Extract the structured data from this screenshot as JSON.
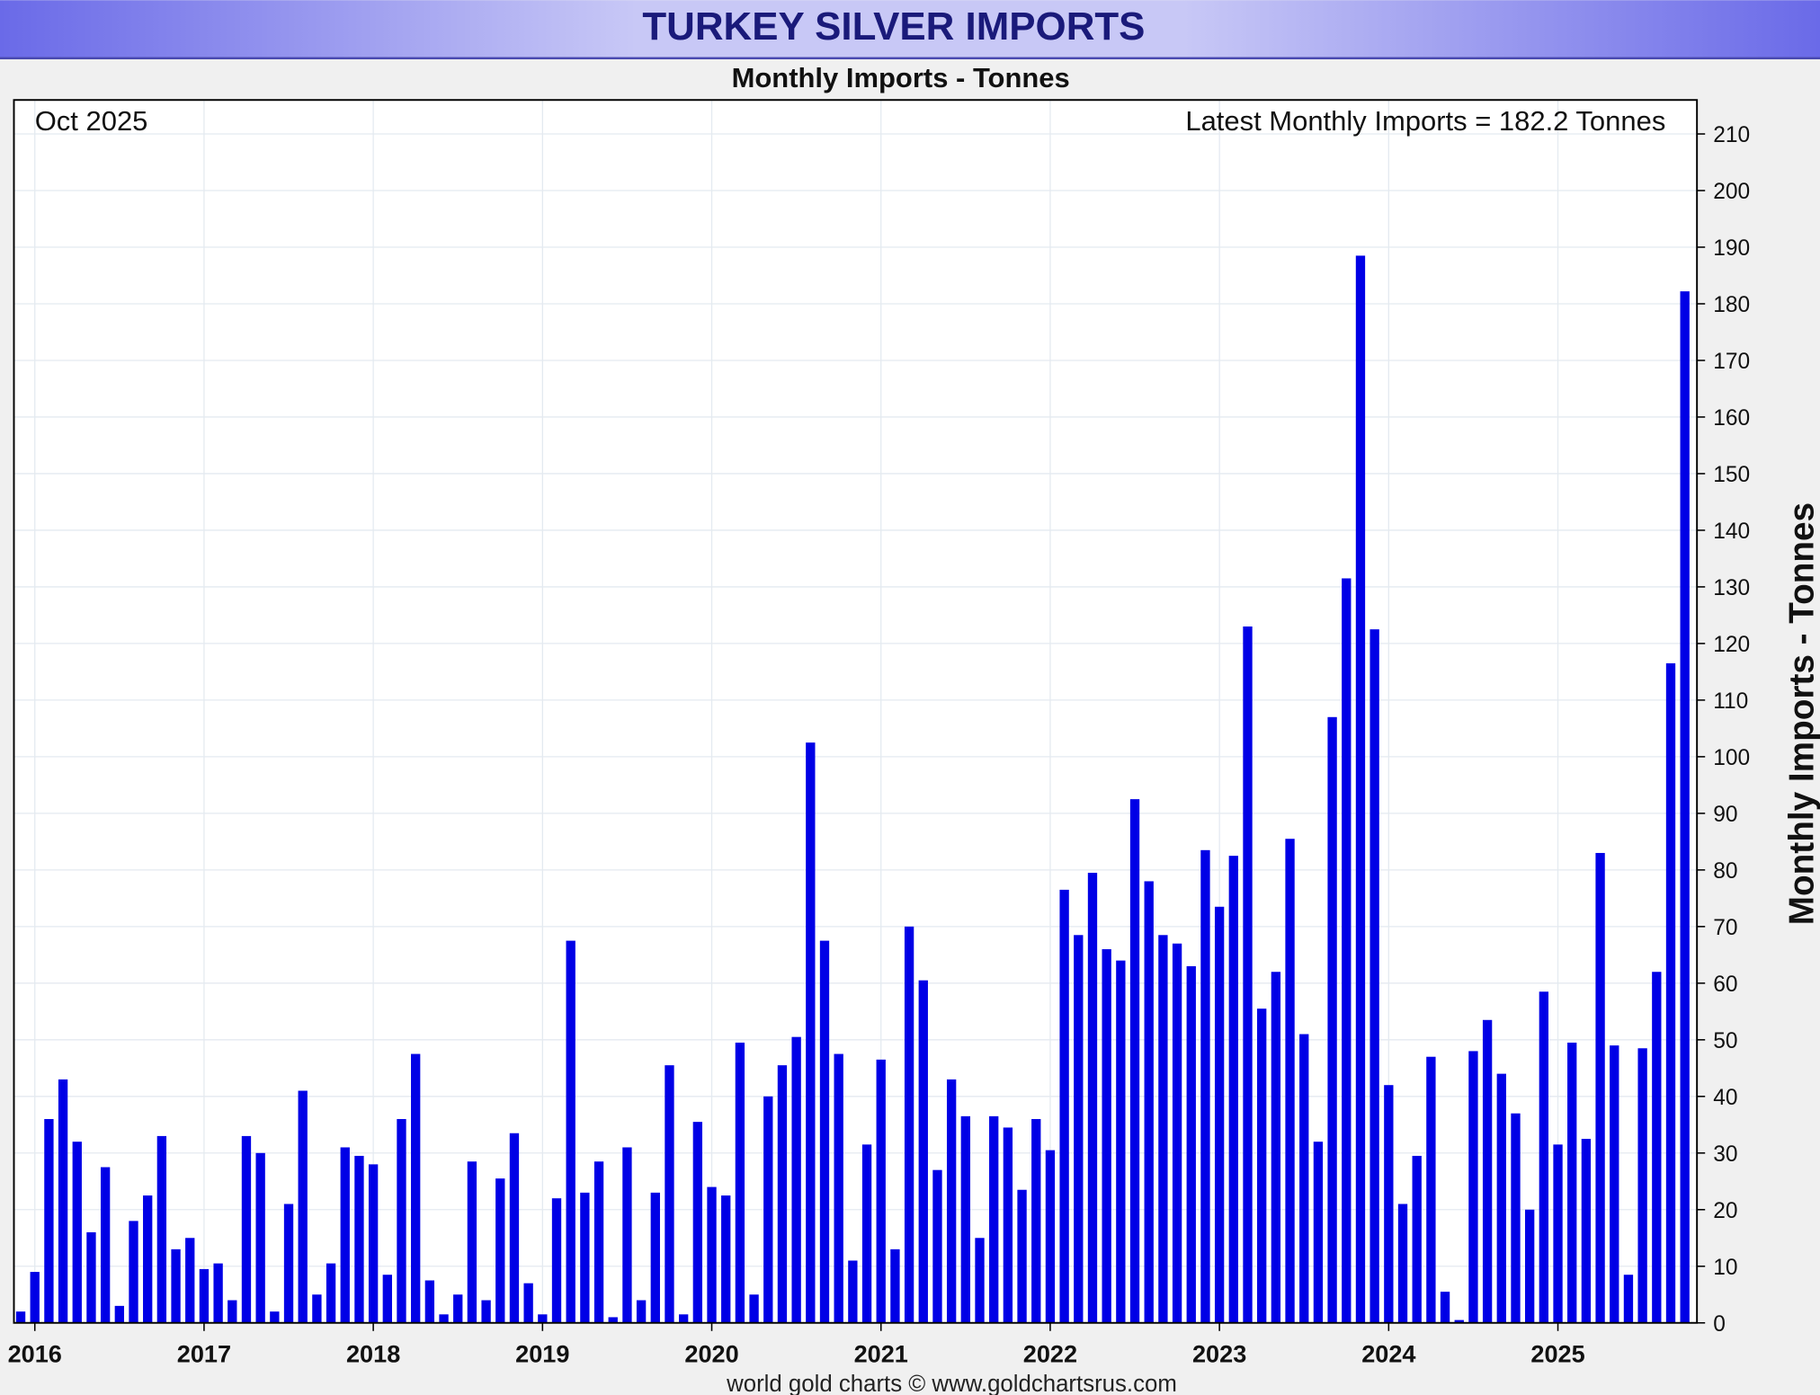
{
  "chart_data": {
    "type": "bar",
    "title": "TURKEY SILVER IMPORTS",
    "subtitle": "Monthly Imports - Tonnes",
    "y_label": "Monthly Imports - Tonnes",
    "annotation_left": "Oct 2025",
    "annotation_right": "Latest Monthly Imports = 182.2 Tonnes",
    "footer": "world gold charts © www.goldchartsrus.com",
    "color": "#0000e6",
    "grid": true,
    "y_axis_side": "right",
    "ylim": [
      0,
      216
    ],
    "yticks": [
      0,
      10,
      20,
      30,
      40,
      50,
      60,
      70,
      80,
      90,
      100,
      110,
      120,
      130,
      140,
      150,
      160,
      170,
      180,
      190,
      200,
      210
    ],
    "categories": [
      null,
      "2016",
      null,
      null,
      null,
      null,
      null,
      null,
      null,
      null,
      null,
      null,
      null,
      "2017",
      null,
      null,
      null,
      null,
      null,
      null,
      null,
      null,
      null,
      null,
      null,
      "2018",
      null,
      null,
      null,
      null,
      null,
      null,
      null,
      null,
      null,
      null,
      null,
      "2019",
      null,
      null,
      null,
      null,
      null,
      null,
      null,
      null,
      null,
      null,
      null,
      "2020",
      null,
      null,
      null,
      null,
      null,
      null,
      null,
      null,
      null,
      null,
      null,
      "2021",
      null,
      null,
      null,
      null,
      null,
      null,
      null,
      null,
      null,
      null,
      null,
      "2022",
      null,
      null,
      null,
      null,
      null,
      null,
      null,
      null,
      null,
      null,
      null,
      "2023",
      null,
      null,
      null,
      null,
      null,
      null,
      null,
      null,
      null,
      null,
      null,
      "2024",
      null,
      null,
      null,
      null,
      null,
      null,
      null,
      null,
      null,
      null,
      null,
      "2025",
      null,
      null,
      null,
      null,
      null,
      null,
      null,
      null,
      null
    ],
    "values": [
      2,
      9,
      36,
      43,
      32,
      16,
      27.5,
      3,
      18,
      22.5,
      33,
      13,
      15,
      9.5,
      10.5,
      4,
      33,
      30,
      2,
      21,
      41,
      5,
      10.5,
      31,
      29.5,
      28,
      8.5,
      36,
      47.5,
      7.5,
      1.5,
      5,
      28.5,
      4,
      25.5,
      33.5,
      7,
      1.5,
      22,
      67.5,
      23,
      28.5,
      1,
      31,
      4,
      23,
      45.5,
      1.5,
      35.5,
      24,
      22.5,
      49.5,
      5,
      40,
      45.5,
      50.5,
      102.5,
      67.5,
      47.5,
      11,
      31.5,
      46.5,
      13,
      70,
      60.5,
      27,
      43,
      36.5,
      15,
      36.5,
      34.5,
      23.5,
      36,
      30.5,
      76.5,
      68.5,
      79.5,
      66,
      64,
      92.5,
      78,
      68.5,
      67,
      63,
      83.5,
      73.5,
      82.5,
      123,
      55.5,
      62,
      85.5,
      51,
      32,
      107,
      131.5,
      188.5,
      122.5,
      42,
      21,
      29.5,
      47,
      5.5,
      0.5,
      48,
      53.5,
      44,
      37,
      20,
      58.5,
      31.5,
      49.5,
      32.5,
      83,
      49,
      8.5,
      48.5,
      62,
      116.5,
      182.2
    ]
  }
}
